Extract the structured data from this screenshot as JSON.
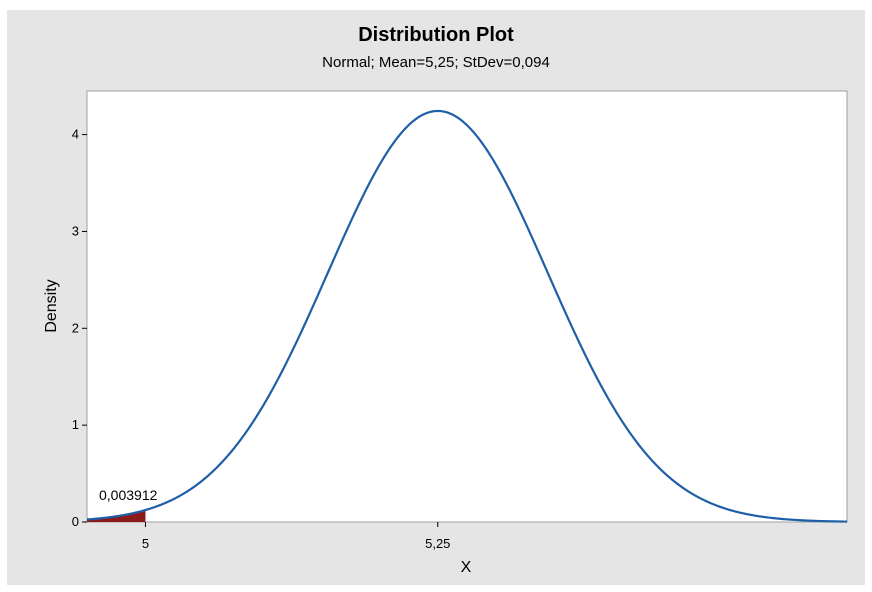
{
  "chart_data": {
    "type": "area",
    "title": "Distribution Plot",
    "subtitle": "Normal; Mean=5,25; StDev=0,094",
    "distribution": "Normal",
    "mean": 5.25,
    "stdev": 0.094,
    "xlabel": "X",
    "ylabel": "Density",
    "xlim": [
      4.95,
      5.6
    ],
    "ylim": [
      0,
      4.45
    ],
    "y_ticks": [
      0,
      1,
      2,
      3,
      4
    ],
    "y_tick_labels": [
      "0",
      "1",
      "2",
      "3",
      "4"
    ],
    "x_ticks": [
      5,
      5.25
    ],
    "x_tick_labels": [
      "5",
      "5,25"
    ],
    "shaded_region": {
      "from": 4.95,
      "to": 5.0,
      "probability_label": "0,003912"
    },
    "grid": false,
    "colors": {
      "curve": "#1f5fa8",
      "shaded": "#8b1a1a",
      "background": "#e5e5e5",
      "plot_area": "#ffffff"
    }
  }
}
